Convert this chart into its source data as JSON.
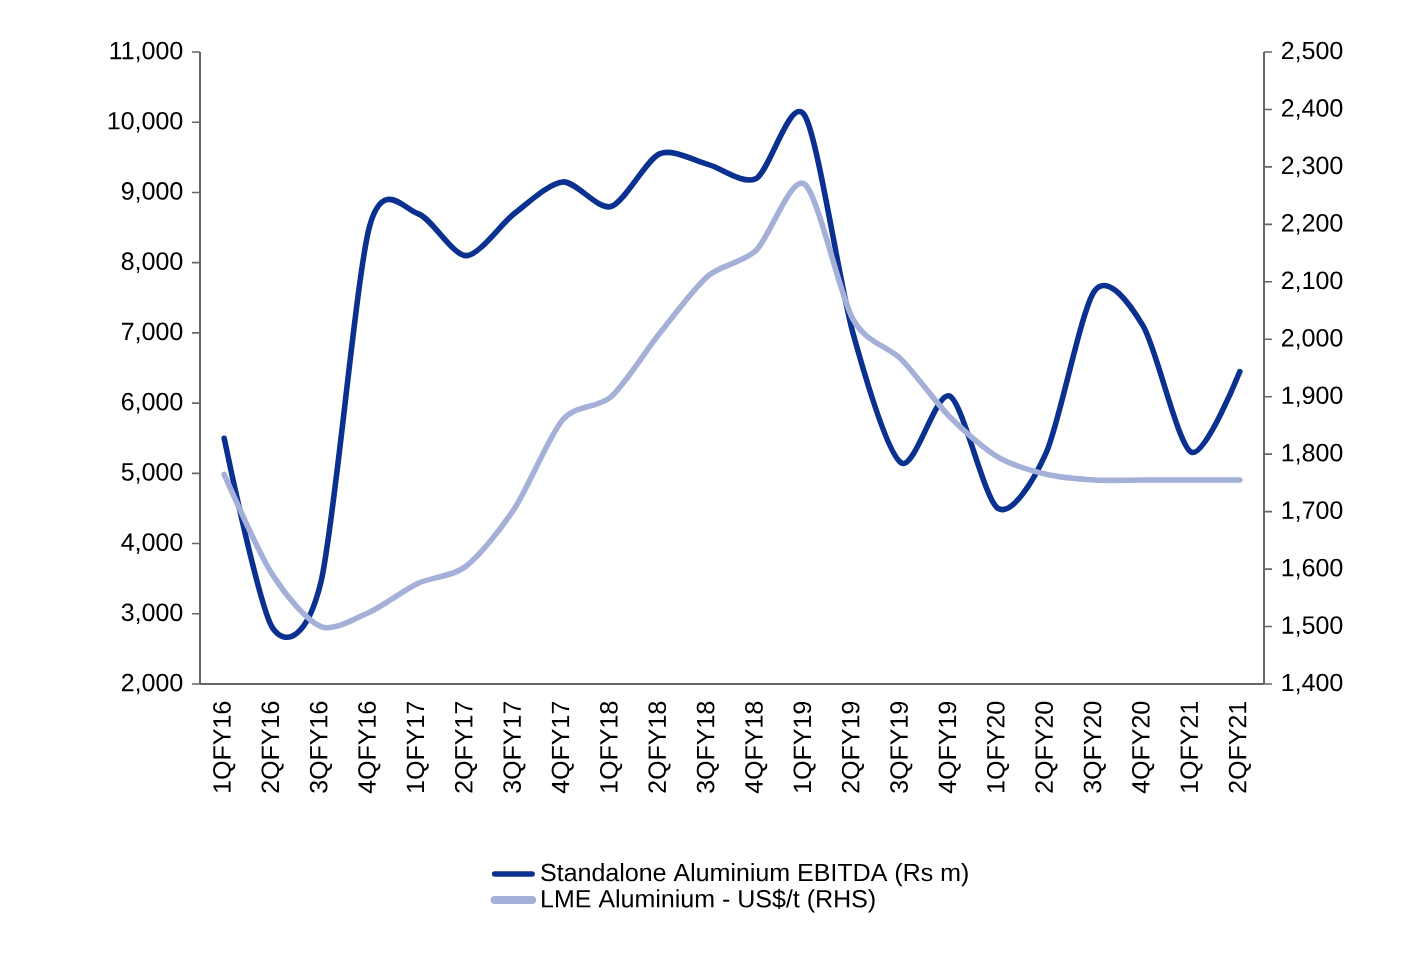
{
  "chart_data": {
    "type": "line",
    "categories": [
      "1QFY16",
      "2QFY16",
      "3QFY16",
      "4QFY16",
      "1QFY17",
      "2QFY17",
      "3QFY17",
      "4QFY17",
      "1QFY18",
      "2QFY18",
      "3QFY18",
      "4QFY18",
      "1QFY19",
      "2QFY19",
      "3QFY19",
      "4QFY19",
      "1QFY20",
      "2QFY20",
      "3QFY20",
      "4QFY20",
      "1QFY21",
      "2QFY21"
    ],
    "series": [
      {
        "name": "Standalone Aluminium EBITDA (Rs m)",
        "color": "#0b3190",
        "values": [
          5500,
          2800,
          3450,
          8500,
          8700,
          8100,
          8700,
          9150,
          8800,
          9550,
          9400,
          9200,
          10100,
          7000,
          5150,
          6100,
          4500,
          5300,
          7600,
          7100,
          5300,
          6450
        ]
      },
      {
        "name": "LME Aluminium - US$/t (RHS)",
        "color": "#a4b0d8",
        "axis": "y2",
        "values": [
          1765,
          1590,
          1500,
          1525,
          1575,
          1605,
          1705,
          1860,
          1900,
          2010,
          2110,
          2155,
          2270,
          2035,
          1965,
          1865,
          1795,
          1765,
          1755,
          1755,
          1755,
          1755
        ]
      }
    ],
    "ylim": [
      2000,
      11000
    ],
    "yticks": [
      {
        "value": 2000,
        "label": "2,000"
      },
      {
        "value": 3000,
        "label": "3,000"
      },
      {
        "value": 4000,
        "label": "4,000"
      },
      {
        "value": 5000,
        "label": "5,000"
      },
      {
        "value": 6000,
        "label": "6,000"
      },
      {
        "value": 7000,
        "label": "7,000"
      },
      {
        "value": 8000,
        "label": "8,000"
      },
      {
        "value": 9000,
        "label": "9,000"
      },
      {
        "value": 10000,
        "label": "10,000"
      },
      {
        "value": 11000,
        "label": "11,000"
      }
    ],
    "y2lim": [
      1400,
      2500
    ],
    "y2ticks": [
      {
        "value": 1400,
        "label": "1,400"
      },
      {
        "value": 1500,
        "label": "1,500"
      },
      {
        "value": 1600,
        "label": "1,600"
      },
      {
        "value": 1700,
        "label": "1,700"
      },
      {
        "value": 1800,
        "label": "1,800"
      },
      {
        "value": 1900,
        "label": "1,900"
      },
      {
        "value": 2000,
        "label": "2,000"
      },
      {
        "value": 2100,
        "label": "2,100"
      },
      {
        "value": 2200,
        "label": "2,200"
      },
      {
        "value": 2300,
        "label": "2,300"
      },
      {
        "value": 2400,
        "label": "2,400"
      },
      {
        "value": 2500,
        "label": "2,500"
      }
    ],
    "legend": "bottom"
  }
}
